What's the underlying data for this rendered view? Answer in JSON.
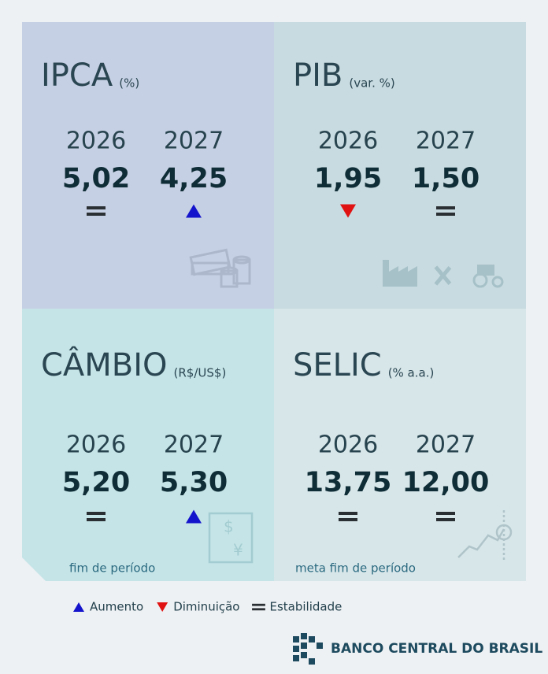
{
  "panels": [
    {
      "title": "IPCA",
      "unit": "(%)",
      "years": [
        2026,
        2027
      ],
      "values": [
        "5,02",
        "4,25"
      ],
      "trends": [
        "stable",
        "up"
      ]
    },
    {
      "title": "PIB",
      "unit": "(var. %)",
      "years": [
        2026,
        2027
      ],
      "values": [
        "1,95",
        "1,50"
      ],
      "trends": [
        "down",
        "stable"
      ]
    },
    {
      "title": "CÂMBIO",
      "unit": "(R$/US$)",
      "years": [
        2026,
        2027
      ],
      "values": [
        "5,20",
        "5,30"
      ],
      "trends": [
        "stable",
        "up"
      ],
      "note": "fim de período"
    },
    {
      "title": "SELIC",
      "unit": "(% a.a.)",
      "years": [
        2026,
        2027
      ],
      "values": [
        "13,75",
        "12,00"
      ],
      "trends": [
        "stable",
        "stable"
      ],
      "note": "meta fim de período"
    }
  ],
  "legend": [
    {
      "trend": "up",
      "label": "Aumento"
    },
    {
      "trend": "down",
      "label": "Diminuição"
    },
    {
      "trend": "stable",
      "label": "Estabilidade"
    }
  ],
  "logo": "BANCO CENTRAL DO BRASIL"
}
